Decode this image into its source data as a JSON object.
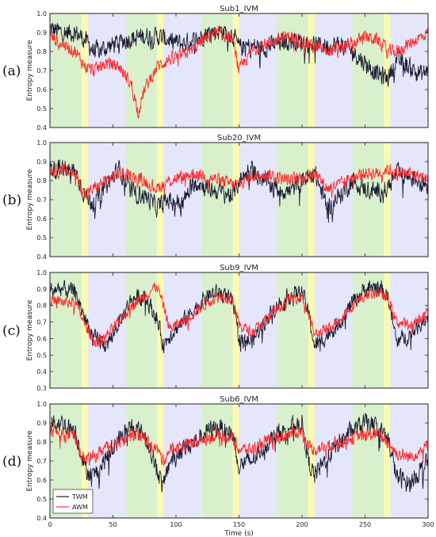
{
  "chart_data": {
    "type": "line",
    "x_range": [
      0,
      300
    ],
    "x_ticks": [
      0,
      50,
      100,
      150,
      200,
      250,
      300
    ],
    "xlabel": "Time (s)",
    "ylabel": "Entropy measure",
    "legend": {
      "placement": "bottom-left",
      "entries": [
        "TWM",
        "AWM"
      ]
    },
    "series_colors": {
      "TWM": "#1a1a33",
      "AWM": "#ff2a2a"
    },
    "phase_bands": [
      {
        "start": 0,
        "end": 25,
        "color": "#d8f0cc"
      },
      {
        "start": 25,
        "end": 30,
        "color": "#fbfbb0"
      },
      {
        "start": 30,
        "end": 60,
        "color": "#e4e6fb"
      },
      {
        "start": 60,
        "end": 85,
        "color": "#d8f0cc"
      },
      {
        "start": 85,
        "end": 90,
        "color": "#fbfbb0"
      },
      {
        "start": 90,
        "end": 120,
        "color": "#e4e6fb"
      },
      {
        "start": 120,
        "end": 145,
        "color": "#d8f0cc"
      },
      {
        "start": 145,
        "end": 150,
        "color": "#fbfbb0"
      },
      {
        "start": 150,
        "end": 180,
        "color": "#e4e6fb"
      },
      {
        "start": 180,
        "end": 205,
        "color": "#d8f0cc"
      },
      {
        "start": 205,
        "end": 210,
        "color": "#fbfbb0"
      },
      {
        "start": 210,
        "end": 240,
        "color": "#e4e6fb"
      },
      {
        "start": 240,
        "end": 265,
        "color": "#d8f0cc"
      },
      {
        "start": 265,
        "end": 270,
        "color": "#fbfbb0"
      },
      {
        "start": 270,
        "end": 300,
        "color": "#e4e6fb"
      }
    ],
    "panels": [
      {
        "letter": "(a)",
        "title": "Sub1_IVM",
        "ylim": [
          0.4,
          1.0
        ],
        "yticks": [
          "0.4",
          "0.5",
          "0.6",
          "0.7",
          "0.8",
          "0.9",
          "1.0"
        ],
        "series": [
          {
            "name": "TWM",
            "x": [
              0,
              10,
              20,
              28,
              35,
              45,
              55,
              65,
              75,
              85,
              95,
              105,
              115,
              125,
              135,
              145,
              150,
              160,
              170,
              180,
              190,
              200,
              210,
              220,
              230,
              240,
              250,
              260,
              268,
              275,
              285,
              295,
              300
            ],
            "y": [
              0.92,
              0.9,
              0.9,
              0.86,
              0.8,
              0.82,
              0.85,
              0.87,
              0.88,
              0.88,
              0.86,
              0.84,
              0.86,
              0.9,
              0.91,
              0.89,
              0.82,
              0.83,
              0.82,
              0.84,
              0.86,
              0.85,
              0.84,
              0.83,
              0.84,
              0.8,
              0.74,
              0.68,
              0.66,
              0.76,
              0.72,
              0.68,
              0.7
            ]
          },
          {
            "name": "AWM",
            "x": [
              0,
              10,
              20,
              28,
              35,
              45,
              55,
              65,
              70,
              75,
              85,
              95,
              105,
              115,
              125,
              135,
              145,
              150,
              160,
              170,
              180,
              190,
              200,
              210,
              220,
              230,
              240,
              250,
              260,
              268,
              275,
              285,
              295,
              300
            ],
            "y": [
              0.88,
              0.84,
              0.8,
              0.72,
              0.7,
              0.74,
              0.72,
              0.62,
              0.48,
              0.6,
              0.72,
              0.76,
              0.78,
              0.82,
              0.88,
              0.9,
              0.86,
              0.7,
              0.8,
              0.84,
              0.86,
              0.88,
              0.86,
              0.82,
              0.8,
              0.82,
              0.84,
              0.88,
              0.86,
              0.8,
              0.8,
              0.84,
              0.88,
              0.9
            ]
          }
        ]
      },
      {
        "letter": "(b)",
        "title": "Sub20_IVM",
        "ylim": [
          0.4,
          1.0
        ],
        "yticks": [
          "0.4",
          "0.5",
          "0.6",
          "0.7",
          "0.8",
          "0.9",
          "1.0"
        ],
        "series": [
          {
            "name": "TWM",
            "x": [
              0,
              10,
              20,
              28,
              35,
              45,
              55,
              65,
              75,
              85,
              95,
              105,
              115,
              125,
              135,
              145,
              150,
              160,
              170,
              180,
              190,
              200,
              210,
              220,
              230,
              240,
              250,
              260,
              268,
              275,
              285,
              295,
              300
            ],
            "y": [
              0.86,
              0.86,
              0.85,
              0.72,
              0.68,
              0.78,
              0.86,
              0.74,
              0.72,
              0.66,
              0.7,
              0.68,
              0.8,
              0.76,
              0.74,
              0.72,
              0.8,
              0.86,
              0.8,
              0.76,
              0.74,
              0.8,
              0.84,
              0.66,
              0.72,
              0.8,
              0.76,
              0.74,
              0.76,
              0.84,
              0.82,
              0.8,
              0.78
            ]
          },
          {
            "name": "AWM",
            "x": [
              0,
              10,
              20,
              28,
              35,
              45,
              55,
              65,
              75,
              85,
              95,
              105,
              115,
              125,
              135,
              145,
              150,
              160,
              170,
              180,
              190,
              200,
              210,
              220,
              230,
              240,
              250,
              260,
              268,
              275,
              285,
              295,
              300
            ],
            "y": [
              0.86,
              0.85,
              0.84,
              0.72,
              0.76,
              0.8,
              0.84,
              0.82,
              0.8,
              0.76,
              0.8,
              0.82,
              0.84,
              0.82,
              0.8,
              0.78,
              0.78,
              0.82,
              0.84,
              0.82,
              0.8,
              0.82,
              0.84,
              0.76,
              0.78,
              0.82,
              0.84,
              0.84,
              0.86,
              0.84,
              0.84,
              0.82,
              0.8
            ]
          }
        ]
      },
      {
        "letter": "(c)",
        "title": "Sub9_IVM",
        "ylim": [
          0.3,
          1.0
        ],
        "yticks": [
          "0.3",
          "0.4",
          "0.5",
          "0.6",
          "0.7",
          "0.8",
          "0.9",
          "1.0"
        ],
        "series": [
          {
            "name": "TWM",
            "x": [
              0,
              10,
              20,
              28,
              35,
              45,
              55,
              65,
              75,
              85,
              90,
              95,
              105,
              115,
              125,
              135,
              145,
              150,
              160,
              170,
              180,
              190,
              200,
              205,
              210,
              220,
              230,
              240,
              250,
              260,
              268,
              275,
              285,
              295,
              300
            ],
            "y": [
              0.9,
              0.9,
              0.88,
              0.72,
              0.6,
              0.56,
              0.7,
              0.84,
              0.86,
              0.72,
              0.56,
              0.62,
              0.7,
              0.78,
              0.86,
              0.88,
              0.82,
              0.6,
              0.58,
              0.7,
              0.8,
              0.86,
              0.88,
              0.76,
              0.55,
              0.62,
              0.7,
              0.82,
              0.9,
              0.92,
              0.86,
              0.58,
              0.62,
              0.7,
              0.74
            ]
          },
          {
            "name": "AWM",
            "x": [
              0,
              10,
              20,
              28,
              35,
              45,
              55,
              65,
              75,
              85,
              90,
              95,
              105,
              115,
              125,
              135,
              145,
              150,
              160,
              170,
              180,
              190,
              200,
              205,
              210,
              220,
              230,
              240,
              250,
              260,
              268,
              275,
              285,
              295,
              300
            ],
            "y": [
              0.84,
              0.82,
              0.82,
              0.68,
              0.58,
              0.62,
              0.7,
              0.8,
              0.86,
              0.92,
              0.8,
              0.66,
              0.7,
              0.76,
              0.82,
              0.86,
              0.84,
              0.68,
              0.64,
              0.7,
              0.78,
              0.84,
              0.86,
              0.76,
              0.62,
              0.66,
              0.72,
              0.8,
              0.86,
              0.88,
              0.84,
              0.7,
              0.68,
              0.72,
              0.78
            ]
          }
        ]
      },
      {
        "letter": "(d)",
        "title": "Sub6_IVM",
        "ylim": [
          0.4,
          1.0
        ],
        "yticks": [
          "0.4",
          "0.5",
          "0.6",
          "0.7",
          "0.8",
          "0.9",
          "1.0"
        ],
        "series": [
          {
            "name": "TWM",
            "x": [
              0,
              10,
              20,
              28,
              35,
              45,
              55,
              65,
              75,
              85,
              90,
              95,
              105,
              115,
              125,
              135,
              145,
              150,
              160,
              170,
              180,
              190,
              200,
              205,
              210,
              220,
              230,
              240,
              250,
              260,
              268,
              275,
              285,
              295,
              300
            ],
            "y": [
              0.9,
              0.9,
              0.86,
              0.66,
              0.62,
              0.72,
              0.82,
              0.88,
              0.84,
              0.66,
              0.56,
              0.7,
              0.76,
              0.8,
              0.86,
              0.88,
              0.84,
              0.68,
              0.7,
              0.78,
              0.84,
              0.88,
              0.9,
              0.7,
              0.62,
              0.72,
              0.8,
              0.86,
              0.9,
              0.88,
              0.82,
              0.62,
              0.58,
              0.66,
              0.7
            ]
          },
          {
            "name": "AWM",
            "x": [
              0,
              10,
              20,
              28,
              35,
              45,
              55,
              65,
              75,
              85,
              90,
              95,
              105,
              115,
              125,
              135,
              145,
              150,
              160,
              170,
              180,
              190,
              200,
              205,
              210,
              220,
              230,
              240,
              250,
              260,
              268,
              275,
              285,
              295,
              300
            ],
            "y": [
              0.86,
              0.84,
              0.82,
              0.7,
              0.72,
              0.78,
              0.8,
              0.84,
              0.82,
              0.76,
              0.7,
              0.76,
              0.78,
              0.8,
              0.82,
              0.84,
              0.82,
              0.76,
              0.76,
              0.8,
              0.82,
              0.84,
              0.86,
              0.78,
              0.76,
              0.78,
              0.8,
              0.82,
              0.84,
              0.84,
              0.8,
              0.74,
              0.72,
              0.76,
              0.78
            ]
          }
        ]
      }
    ]
  }
}
